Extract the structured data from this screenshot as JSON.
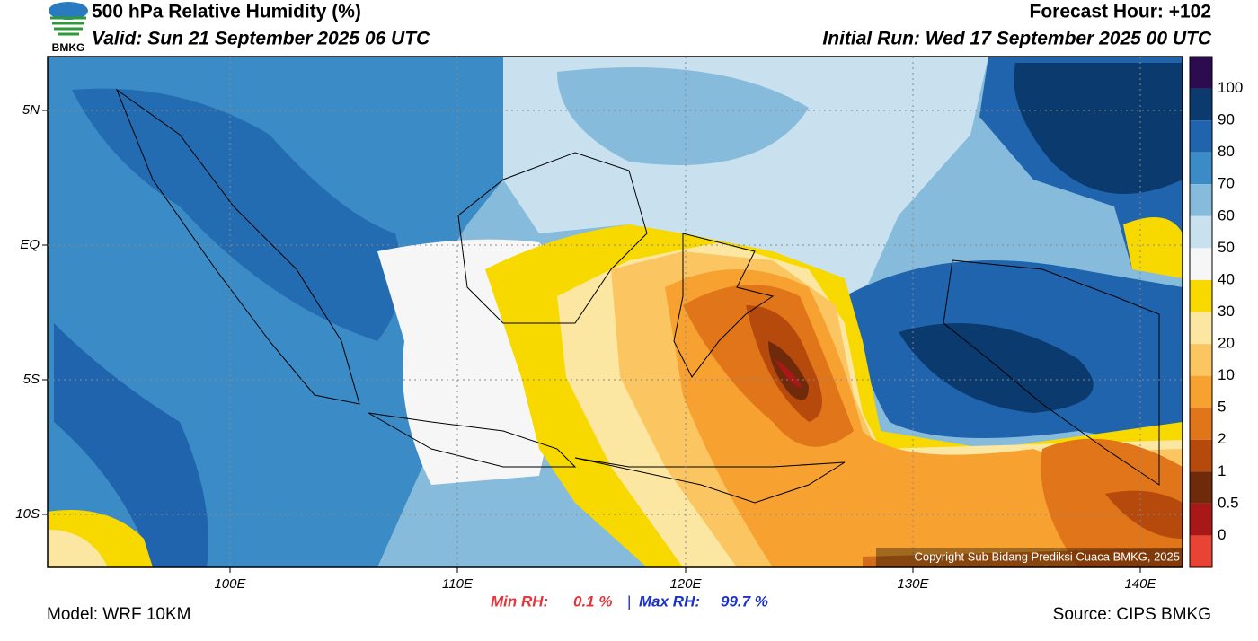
{
  "header": {
    "title": "500 hPa Relative Humidity (%)",
    "valid": "Valid: Sun 21 September 2025 06 UTC",
    "forecast_hour": "Forecast Hour: +102",
    "initial_run": "Initial Run: Wed 17 September 2025 00 UTC",
    "logo_text": "BMKG"
  },
  "map": {
    "lat_labels": [
      "5N",
      "EQ",
      "5S",
      "10S"
    ],
    "lon_labels": [
      "100E",
      "110E",
      "120E",
      "130E",
      "140E"
    ],
    "copyright": "Copyright Sub Bidang Prediksi Cuaca BMKG, 2025"
  },
  "colorbar": {
    "labels": [
      "100",
      "90",
      "80",
      "70",
      "60",
      "50",
      "40",
      "30",
      "20",
      "10",
      "5",
      "2",
      "1",
      "0.5",
      "0"
    ],
    "colors": [
      "#2c0b4e",
      "#0b3a6e",
      "#1f64ad",
      "#3b8bc7",
      "#86bbdc",
      "#c9e1ef",
      "#f6f6f6",
      "#f7d900",
      "#fbe6a2",
      "#fbc661",
      "#f7a130",
      "#e07519",
      "#b54a0c",
      "#6e2a0b",
      "#a81818",
      "#e84334"
    ]
  },
  "footer": {
    "model": "Model: WRF 10KM",
    "min_label": "Min RH:",
    "min_value": "0.1 %",
    "separator": "|",
    "max_label": "Max RH:",
    "max_value": "99.7 %",
    "source": "Source: CIPS BMKG"
  }
}
